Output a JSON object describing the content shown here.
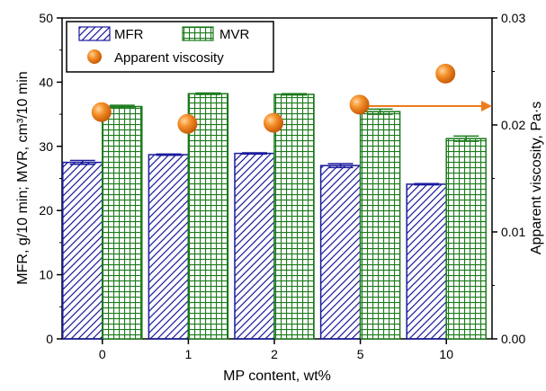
{
  "chart_data": {
    "type": "bar",
    "categories": [
      "0",
      "1",
      "2",
      "5",
      "10"
    ],
    "xlabel": "MP content, wt%",
    "ylabel_left": "MFR, g/10 min; MVR, cm³/10 min",
    "ylabel_right": "Apparent viscosity,  Pa·s",
    "ylim_left": [
      0,
      50
    ],
    "ylim_right": [
      0,
      0.03
    ],
    "yticks_left": [
      "0",
      "10",
      "20",
      "30",
      "40",
      "50"
    ],
    "yticks_right": [
      "0.00",
      "0.01",
      "0.02",
      "0.03"
    ],
    "series": [
      {
        "name": "MFR",
        "axis": "left",
        "kind": "bar",
        "pattern": "diagonal-hatch",
        "color": "#1a1a9c",
        "values": [
          27.5,
          28.7,
          28.9,
          27.0,
          24.1
        ],
        "errors": [
          0.3,
          0.1,
          0.1,
          0.3,
          0.1
        ]
      },
      {
        "name": "MVR",
        "axis": "left",
        "kind": "bar",
        "pattern": "grid",
        "color": "#1b7a1b",
        "values": [
          36.2,
          38.2,
          38.1,
          35.4,
          31.2
        ],
        "errors": [
          0.2,
          0.1,
          0.1,
          0.4,
          0.4
        ]
      },
      {
        "name": "Apparent viscosity",
        "axis": "right",
        "kind": "scatter",
        "color": "#ee7b1a",
        "values": [
          0.0212,
          0.0201,
          0.0202,
          0.0219,
          0.0248
        ]
      }
    ],
    "legend": {
      "placement": "top-left",
      "items": [
        "MFR",
        "MVR",
        "Apparent viscosity"
      ]
    },
    "annotations": [
      {
        "type": "arrow",
        "direction": "right",
        "meaning": "points to right axis",
        "color": "#ee7b1a"
      }
    ],
    "grid": false
  }
}
